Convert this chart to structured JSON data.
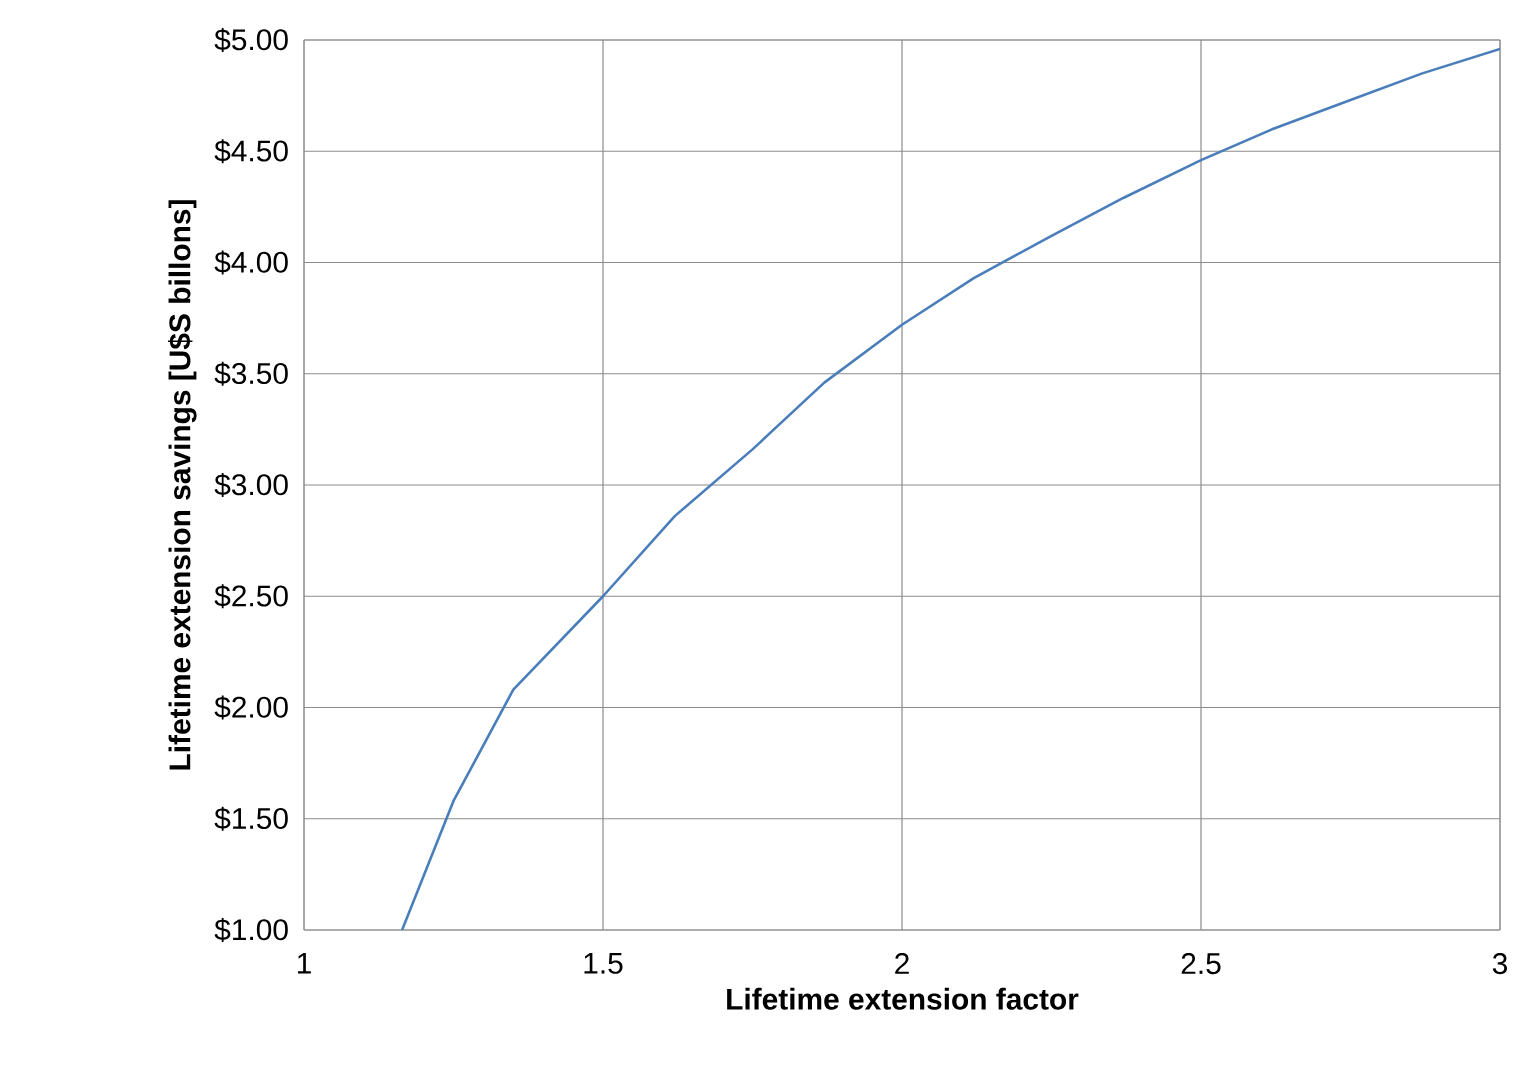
{
  "chart_data": {
    "type": "line",
    "xlabel": "Lifetime extension factor",
    "ylabel": "Lifetime extension savings [U$S billons]",
    "x": [
      1.164,
      1.25,
      1.35,
      1.5,
      1.62,
      1.75,
      1.87,
      2,
      2.12,
      2.25,
      2.37,
      2.5,
      2.62,
      2.75,
      2.87,
      3
    ],
    "series": [
      {
        "color": "#4a7ebb",
        "values": [
          1.0,
          1.58,
          2.08,
          2.5,
          2.86,
          3.16,
          3.46,
          3.72,
          3.93,
          4.12,
          4.29,
          4.46,
          4.6,
          4.73,
          4.85,
          4.96
        ]
      }
    ],
    "xlim": [
      1,
      3
    ],
    "ylim": [
      1,
      5
    ],
    "xticks": [
      1,
      1.5,
      2,
      2.5,
      3
    ],
    "yticks": [
      {
        "value": 1,
        "label": "$1.00"
      },
      {
        "value": 1.5,
        "label": "$1.50"
      },
      {
        "value": 2,
        "label": "$2.00"
      },
      {
        "value": 2.5,
        "label": "$2.50"
      },
      {
        "value": 3,
        "label": "$3.00"
      },
      {
        "value": 3.5,
        "label": "$3.50"
      },
      {
        "value": 4,
        "label": "$4.00"
      },
      {
        "value": 4.5,
        "label": "$4.50"
      },
      {
        "value": 5,
        "label": "$5.00"
      }
    ],
    "grid": true
  }
}
